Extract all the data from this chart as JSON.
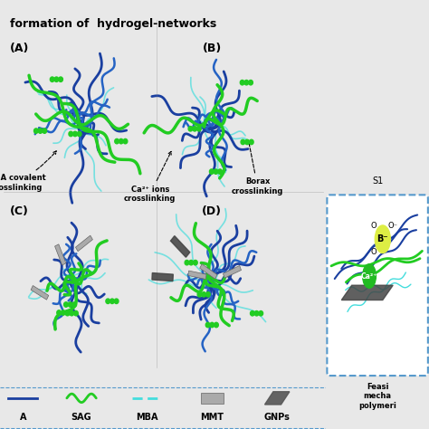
{
  "title": "formation of  hydrogel-networks",
  "bg_color": "#e8e8e8",
  "panel_bg": "#ffffff",
  "label_A": "(A)",
  "label_B": "(B)",
  "label_C": "(C)",
  "label_D": "(D)",
  "annotation_MBA": "MBA covalent\ncrosslinking",
  "annotation_Ca": "Ca²⁺ ions\ncrosslinking",
  "annotation_Borax": "Borax\ncrosslinking",
  "legend_labels": [
    "A",
    "SAG",
    "MBA",
    "MMT",
    "GNPs"
  ],
  "colors": {
    "blue_dark": "#1a3fa0",
    "blue_med": "#2563c4",
    "green_bright": "#22cc22",
    "cyan_light": "#44dddd",
    "gray_mmt": "#aaaaaa",
    "gray_gnp": "#555555",
    "yellow_cross": "#ddee00",
    "border": "#aaaaaa",
    "dashed_border": "#5599cc"
  },
  "arrow_color": "#000000",
  "font_bold": true
}
